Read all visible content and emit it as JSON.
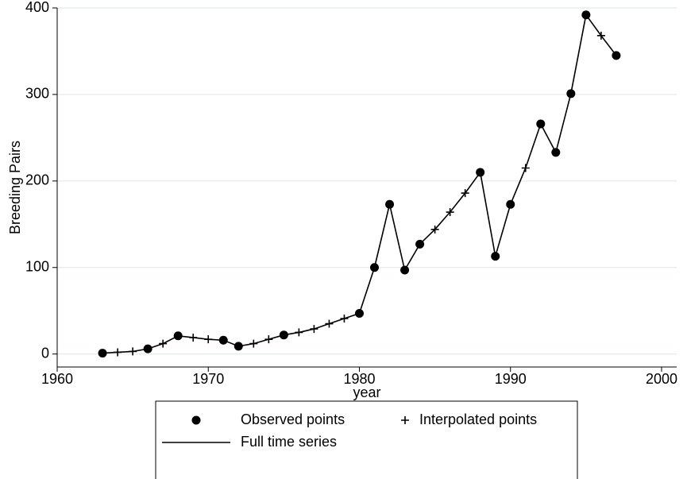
{
  "chart_data": {
    "type": "line",
    "xlabel": "year",
    "ylabel": "Breeding Pairs",
    "x": [
      1963,
      1964,
      1965,
      1966,
      1967,
      1968,
      1969,
      1970,
      1971,
      1972,
      1973,
      1974,
      1975,
      1976,
      1977,
      1978,
      1979,
      1980,
      1981,
      1982,
      1983,
      1984,
      1985,
      1986,
      1987,
      1988,
      1989,
      1990,
      1991,
      1992,
      1993,
      1994,
      1995,
      1996,
      1997
    ],
    "series": [
      {
        "name": "Observed points",
        "color": "#000000",
        "marker": "circle",
        "values": [
          1,
          null,
          null,
          6,
          null,
          21,
          null,
          null,
          16,
          9,
          null,
          null,
          22,
          null,
          null,
          null,
          null,
          47,
          100,
          173,
          97,
          127,
          null,
          null,
          null,
          210,
          113,
          173,
          null,
          266,
          233,
          301,
          392,
          null,
          345
        ]
      },
      {
        "name": "Interpolated points",
        "color": "#000000",
        "marker": "plus",
        "values": [
          null,
          2,
          3,
          null,
          12,
          null,
          19,
          17,
          null,
          null,
          12,
          17,
          null,
          25,
          29,
          35,
          41,
          null,
          null,
          null,
          null,
          null,
          144,
          164,
          186,
          null,
          null,
          null,
          215,
          null,
          null,
          null,
          null,
          368,
          null
        ]
      },
      {
        "name": "Full time series",
        "color": "#000000",
        "marker": "line",
        "values": [
          1,
          2,
          3,
          6,
          12,
          21,
          19,
          17,
          16,
          9,
          12,
          17,
          22,
          25,
          29,
          35,
          41,
          47,
          100,
          173,
          97,
          127,
          144,
          164,
          186,
          210,
          113,
          173,
          215,
          266,
          233,
          301,
          392,
          368,
          345
        ]
      }
    ],
    "xlim": [
      1960,
      2001
    ],
    "xticks": [
      1960,
      1970,
      1980,
      1990,
      2000
    ],
    "ylim": [
      -15,
      400
    ],
    "yticks": [
      0,
      100,
      200,
      300,
      400
    ],
    "grid": true
  }
}
